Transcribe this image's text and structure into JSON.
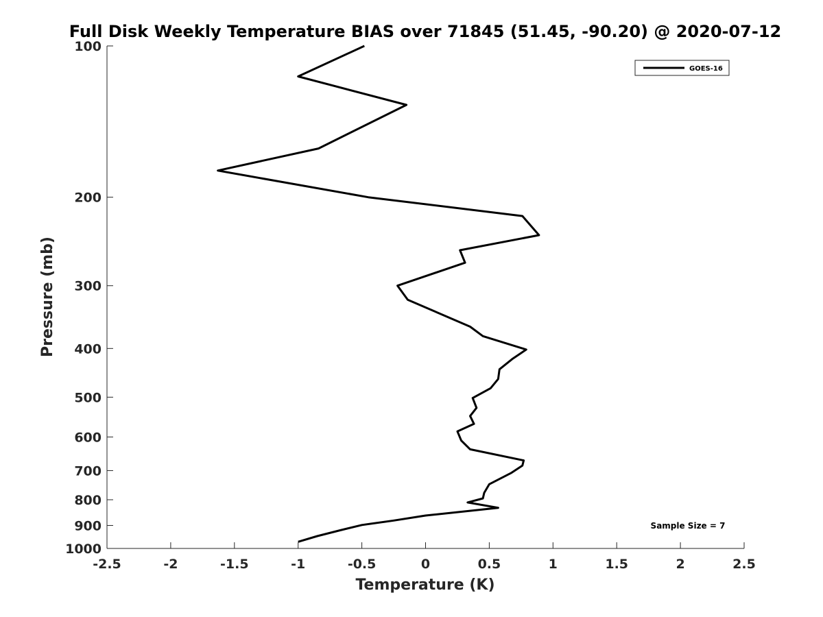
{
  "chart_data": {
    "type": "line",
    "title": "Full Disk Weekly Temperature BIAS over 71845 (51.45, -90.20) @ 2020-07-12",
    "xlabel": "Temperature (K)",
    "ylabel": "Pressure (mb)",
    "xlim": [
      -2.5,
      2.5
    ],
    "ylim": [
      1000,
      100
    ],
    "yscale": "log",
    "y_reversed": true,
    "grid": false,
    "legend_position": "top-right",
    "x_ticks": [
      "-2.5",
      "-2",
      "-1.5",
      "-1",
      "-0.5",
      "0",
      "0.5",
      "1",
      "1.5",
      "2",
      "2.5"
    ],
    "x_tick_values": [
      -2.5,
      -2,
      -1.5,
      -1,
      -0.5,
      0,
      0.5,
      1,
      1.5,
      2,
      2.5
    ],
    "y_ticks": [
      "100",
      "200",
      "300",
      "400",
      "500",
      "600",
      "700",
      "800",
      "900",
      "1000"
    ],
    "y_tick_values": [
      100,
      200,
      300,
      400,
      500,
      600,
      700,
      800,
      900,
      1000
    ],
    "series": [
      {
        "name": "GOES-16",
        "color": "#000000",
        "points": [
          {
            "x": -0.48,
            "p": 100
          },
          {
            "x": -1.0,
            "p": 115
          },
          {
            "x": -0.15,
            "p": 131
          },
          {
            "x": -0.84,
            "p": 160
          },
          {
            "x": -1.63,
            "p": 177
          },
          {
            "x": -0.45,
            "p": 200
          },
          {
            "x": 0.76,
            "p": 218
          },
          {
            "x": 0.89,
            "p": 238
          },
          {
            "x": 0.27,
            "p": 255
          },
          {
            "x": 0.31,
            "p": 270
          },
          {
            "x": -0.22,
            "p": 300
          },
          {
            "x": -0.14,
            "p": 320
          },
          {
            "x": 0.35,
            "p": 362
          },
          {
            "x": 0.45,
            "p": 378
          },
          {
            "x": 0.79,
            "p": 402
          },
          {
            "x": 0.68,
            "p": 420
          },
          {
            "x": 0.58,
            "p": 440
          },
          {
            "x": 0.57,
            "p": 460
          },
          {
            "x": 0.51,
            "p": 480
          },
          {
            "x": 0.37,
            "p": 502
          },
          {
            "x": 0.4,
            "p": 525
          },
          {
            "x": 0.35,
            "p": 545
          },
          {
            "x": 0.38,
            "p": 565
          },
          {
            "x": 0.25,
            "p": 585
          },
          {
            "x": 0.28,
            "p": 610
          },
          {
            "x": 0.35,
            "p": 635
          },
          {
            "x": 0.77,
            "p": 668
          },
          {
            "x": 0.76,
            "p": 684
          },
          {
            "x": 0.67,
            "p": 708
          },
          {
            "x": 0.5,
            "p": 745
          },
          {
            "x": 0.46,
            "p": 775
          },
          {
            "x": 0.45,
            "p": 795
          },
          {
            "x": 0.33,
            "p": 810
          },
          {
            "x": 0.57,
            "p": 830
          },
          {
            "x": 0.0,
            "p": 860
          },
          {
            "x": -0.25,
            "p": 880
          },
          {
            "x": -0.5,
            "p": 898
          },
          {
            "x": -0.67,
            "p": 920
          },
          {
            "x": -0.85,
            "p": 945
          },
          {
            "x": -1.0,
            "p": 970
          }
        ]
      }
    ],
    "annotations": [
      {
        "text": "Sample Size = 7",
        "position": "bottom-right"
      }
    ]
  }
}
